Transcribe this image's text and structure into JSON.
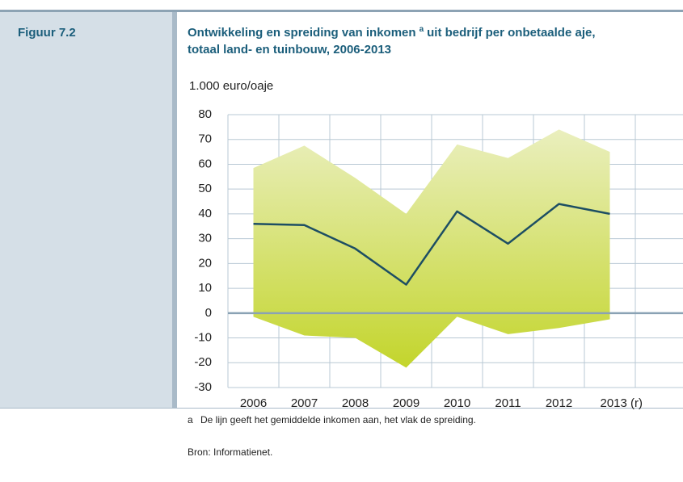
{
  "figure_label": "Figuur 7.2",
  "footnote_marker": "a",
  "footnote": "De lijn geeft het gemiddelde inkomen aan, het vlak de spreiding.",
  "source": "Bron: Informatienet.",
  "chart_data": {
    "type": "line",
    "title": [
      "Ontwikkeling en spreiding van inkomen",
      "a",
      "uit bedrijf per onbetaalde aje,",
      "totaal land- en tuinbouw, 2006-2013"
    ],
    "y_label": "1.000 euro/oaje",
    "categories": [
      "2006",
      "2007",
      "2008",
      "2009",
      "2010",
      "2011",
      "2012",
      "2013 (r)"
    ],
    "series": [
      {
        "color": "#1d4e63",
        "values": [
          36,
          35.5,
          26,
          11.5,
          41,
          28,
          44,
          40
        ]
      }
    ],
    "range": {
      "color_top": "#eaefbe",
      "color_bottom": "#c3d52c",
      "upper": [
        58.5,
        67.5,
        54.5,
        40,
        68,
        62.5,
        74,
        65
      ],
      "lower": [
        -1.5,
        -9,
        -10,
        -22,
        -1.5,
        -8.5,
        -6,
        -2.5
      ]
    },
    "ylim": [
      -30,
      80
    ],
    "yticks": [
      -30,
      -20,
      -10,
      0,
      10,
      20,
      30,
      40,
      50,
      60,
      70,
      80
    ],
    "grid": true
  }
}
